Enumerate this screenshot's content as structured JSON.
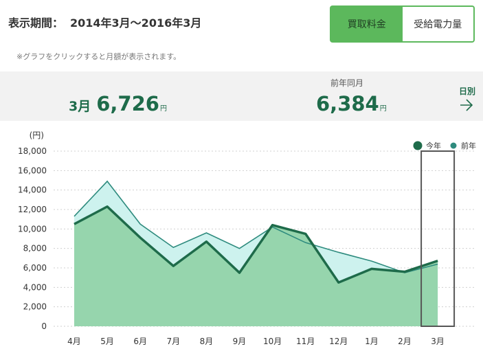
{
  "header": {
    "period_label": "表示期間：",
    "period_value": "2014年3月〜2016年3月"
  },
  "toggle": {
    "option_1": "買取料金",
    "option_2": "受給電力量",
    "selected": "買取料金"
  },
  "note": "※グラフをクリックすると月額が表示されます。",
  "summary": {
    "current_month": "3月",
    "current_value": "6,726",
    "current_unit": "円",
    "prev_label": "前年同月",
    "prev_value": "6,384",
    "prev_unit": "円",
    "daily_link": "日別"
  },
  "colors": {
    "this_year_line": "#1e6b4a",
    "this_year_fill": "#96d5ad",
    "last_year_line": "#2e8b7e",
    "last_year_fill": "#cdf2ee",
    "toggle_active": "#5cb85c",
    "text_green": "#1e6b4a"
  },
  "chart_data": {
    "type": "area",
    "ylabel": "(円)",
    "ylim": [
      0,
      18000
    ],
    "yticks": [
      0,
      2000,
      4000,
      6000,
      8000,
      10000,
      12000,
      14000,
      16000,
      18000
    ],
    "ytick_labels": [
      "0",
      "2,000",
      "4,000",
      "6,000",
      "8,000",
      "10,000",
      "12,000",
      "14,000",
      "16,000",
      "18,000"
    ],
    "categories": [
      "4月",
      "5月",
      "6月",
      "7月",
      "8月",
      "9月",
      "10月",
      "11月",
      "12月",
      "1月",
      "2月",
      "3月"
    ],
    "series": [
      {
        "name": "今年",
        "values": [
          10500,
          12300,
          9100,
          6200,
          8700,
          5500,
          10400,
          9500,
          4500,
          5900,
          5600,
          6726
        ]
      },
      {
        "name": "前年",
        "values": [
          11300,
          14900,
          10500,
          8100,
          9600,
          8000,
          10200,
          8600,
          7600,
          6700,
          5500,
          6384
        ]
      }
    ],
    "highlight_category": "3月",
    "legend_position": "top-right",
    "grid": true
  }
}
